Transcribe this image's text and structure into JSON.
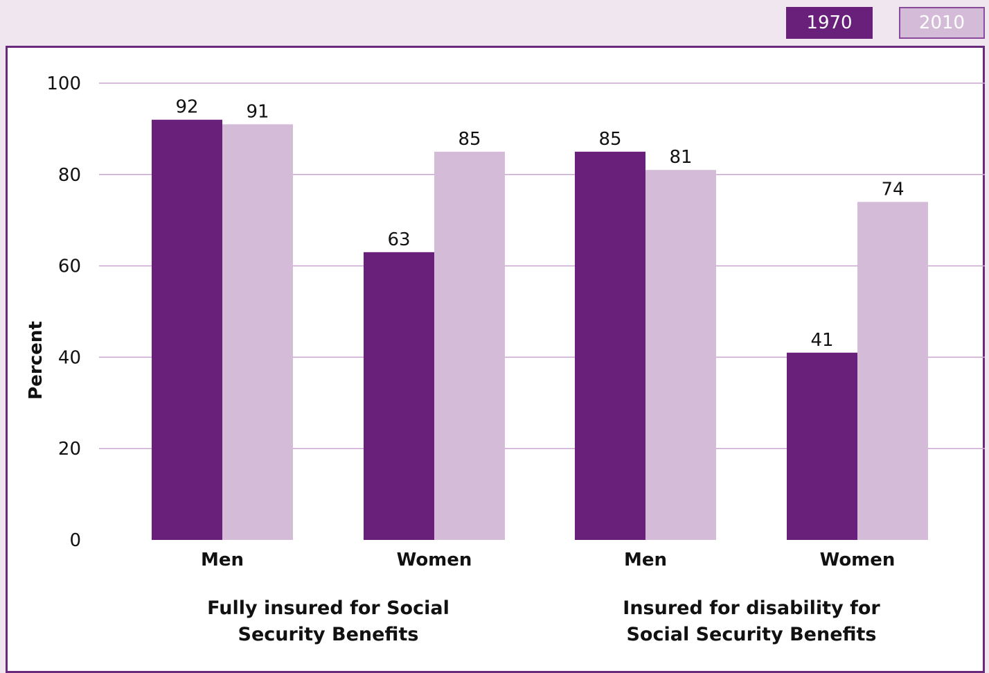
{
  "colors": {
    "s1970": "#69207a",
    "s2010": "#d4bbd8",
    "grid": "#c9a6cf",
    "frame": "#6a2a7c",
    "background": "#efe6f0"
  },
  "chart_data": {
    "type": "bar",
    "ylabel": "Percent",
    "ylim": [
      0,
      100
    ],
    "yticks": [
      0,
      20,
      40,
      60,
      80,
      100
    ],
    "categories": [
      "Men",
      "Women",
      "Men",
      "Women"
    ],
    "groups": [
      {
        "label_line1": "Fully insured for Social",
        "label_line2": "Security Benefits",
        "categories": [
          0,
          1
        ]
      },
      {
        "label_line1": "Insured for disability for",
        "label_line2": "Social Security Benefits",
        "categories": [
          2,
          3
        ]
      }
    ],
    "series": [
      {
        "name": "1970",
        "values": [
          92,
          63,
          85,
          41
        ]
      },
      {
        "name": "2010",
        "values": [
          91,
          85,
          81,
          74
        ]
      }
    ],
    "grid": true,
    "legend_position": "top-right"
  }
}
